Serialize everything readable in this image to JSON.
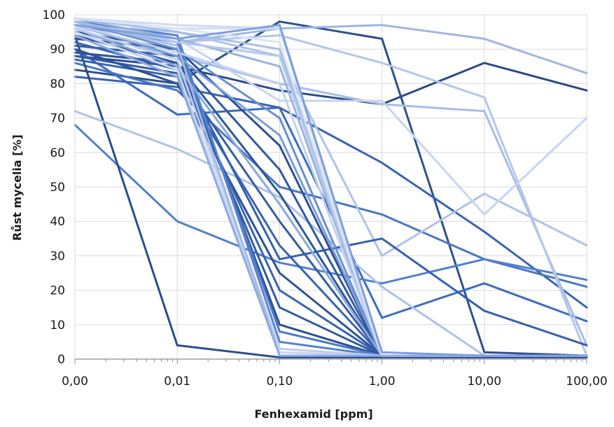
{
  "chart_data": {
    "type": "line",
    "xscale": "log",
    "xlabel": "Fenhexamid [ppm]",
    "ylabel": "Růst mycelia [%]",
    "x": [
      0.001,
      0.01,
      0.1,
      1,
      10,
      100
    ],
    "x_tick_labels": [
      "0,00",
      "0,01",
      "0,10",
      "1,00",
      "10,00",
      "100,00"
    ],
    "y_ticks": [
      0,
      10,
      20,
      30,
      40,
      50,
      60,
      70,
      80,
      90,
      100
    ],
    "ylim": [
      0,
      100
    ],
    "grid": true,
    "legend": "none",
    "colors": [
      "#24478a",
      "#2e5aa6",
      "#3a6cc0",
      "#5a86cf",
      "#7a9fd9",
      "#9db5e2",
      "#b9cbeb",
      "#d2def3"
    ],
    "series": [
      {
        "values": [
          84,
          80,
          98,
          93,
          2,
          1
        ],
        "color": "#2e4f8c"
      },
      {
        "values": [
          88,
          85,
          78,
          74,
          86,
          78
        ],
        "color": "#2a4a88"
      },
      {
        "values": [
          90,
          71,
          73,
          12,
          22,
          11
        ],
        "color": "#3d6bbf"
      },
      {
        "values": [
          82,
          79,
          73,
          57,
          37,
          15
        ],
        "color": "#3a64b3"
      },
      {
        "values": [
          86,
          78,
          50,
          42,
          29,
          21
        ],
        "color": "#4a76c4"
      },
      {
        "values": [
          68,
          40,
          28,
          22,
          29,
          23
        ],
        "color": "#5280cc"
      },
      {
        "values": [
          94,
          4,
          0.5,
          0.5,
          0.5,
          0.5
        ],
        "color": "#2b4d8e"
      },
      {
        "values": [
          97,
          92,
          96,
          97,
          93,
          83
        ],
        "color": "#9fb6e2"
      },
      {
        "values": [
          95,
          88,
          80,
          74,
          72,
          4
        ],
        "color": "#a8bde6"
      },
      {
        "values": [
          99,
          92,
          94,
          86,
          76,
          1
        ],
        "color": "#b4c7ea"
      },
      {
        "values": [
          97,
          95,
          88,
          30,
          48,
          33
        ],
        "color": "#b0c3e8"
      },
      {
        "values": [
          72,
          61,
          47,
          21,
          1,
          1
        ],
        "color": "#aec2e8"
      },
      {
        "values": [
          96,
          93,
          75,
          75,
          42,
          70
        ],
        "color": "#c7d5f0"
      },
      {
        "values": [
          89,
          86,
          29,
          35,
          14,
          4
        ],
        "color": "#3460b0"
      },
      {
        "values": [
          96,
          96,
          96,
          1,
          1,
          1
        ],
        "color": "#d3def3"
      },
      {
        "values": [
          93,
          90,
          62,
          1,
          1,
          1
        ],
        "color": "#2d4f92"
      },
      {
        "values": [
          91,
          88,
          55,
          1,
          1,
          1
        ],
        "color": "#3159a0"
      },
      {
        "values": [
          89,
          86,
          48,
          1,
          1,
          1
        ],
        "color": "#2f5699"
      },
      {
        "values": [
          88,
          83,
          40,
          1,
          1,
          1
        ],
        "color": "#345ca6"
      },
      {
        "values": [
          87,
          82,
          33,
          1,
          1,
          1
        ],
        "color": "#3962ad"
      },
      {
        "values": [
          90,
          80,
          25,
          1,
          1,
          1
        ],
        "color": "#2e5296"
      },
      {
        "values": [
          92,
          84,
          20,
          1,
          1,
          1
        ],
        "color": "#3a64b0"
      },
      {
        "values": [
          94,
          86,
          15,
          1,
          1,
          1
        ],
        "color": "#325a9f"
      },
      {
        "values": [
          95,
          90,
          10,
          1,
          1,
          1
        ],
        "color": "#2c4e8f"
      },
      {
        "values": [
          97,
          92,
          8,
          1,
          1,
          1
        ],
        "color": "#4a77c6"
      },
      {
        "values": [
          98,
          94,
          5,
          1,
          1,
          1
        ],
        "color": "#5583cf"
      },
      {
        "values": [
          98,
          90,
          70,
          1,
          1,
          1
        ],
        "color": "#6890d4"
      },
      {
        "values": [
          97,
          88,
          65,
          1,
          1,
          1
        ],
        "color": "#7a9dda"
      },
      {
        "values": [
          96,
          85,
          45,
          1,
          1,
          1
        ],
        "color": "#89a9de"
      },
      {
        "values": [
          99,
          93,
          85,
          1,
          1,
          1
        ],
        "color": "#98b3e1"
      },
      {
        "values": [
          99,
          95,
          90,
          1,
          1,
          1
        ],
        "color": "#a6bee6"
      },
      {
        "values": [
          98,
          92,
          88,
          1,
          1,
          1
        ],
        "color": "#b6c9eb"
      },
      {
        "values": [
          97,
          89,
          80,
          1,
          1,
          1
        ],
        "color": "#c2d2ef"
      },
      {
        "values": [
          99,
          97,
          96,
          1,
          1,
          1
        ],
        "color": "#cfdbf2"
      },
      {
        "values": [
          96,
          87,
          3,
          1,
          1,
          1
        ],
        "color": "#bccdee"
      },
      {
        "values": [
          95,
          84,
          2,
          1,
          1,
          1
        ],
        "color": "#c8d6f1"
      },
      {
        "values": [
          98,
          91,
          1,
          1,
          1,
          1
        ],
        "color": "#a3bbe5"
      },
      {
        "values": [
          99,
          96,
          92,
          1,
          1,
          1
        ],
        "color": "#dbe4f5"
      },
      {
        "values": [
          94,
          82,
          1,
          1,
          1,
          1
        ],
        "color": "#8fabdf"
      },
      {
        "values": [
          97,
          93,
          97,
          2,
          1,
          1
        ],
        "color": "#7e9fdb"
      }
    ]
  }
}
